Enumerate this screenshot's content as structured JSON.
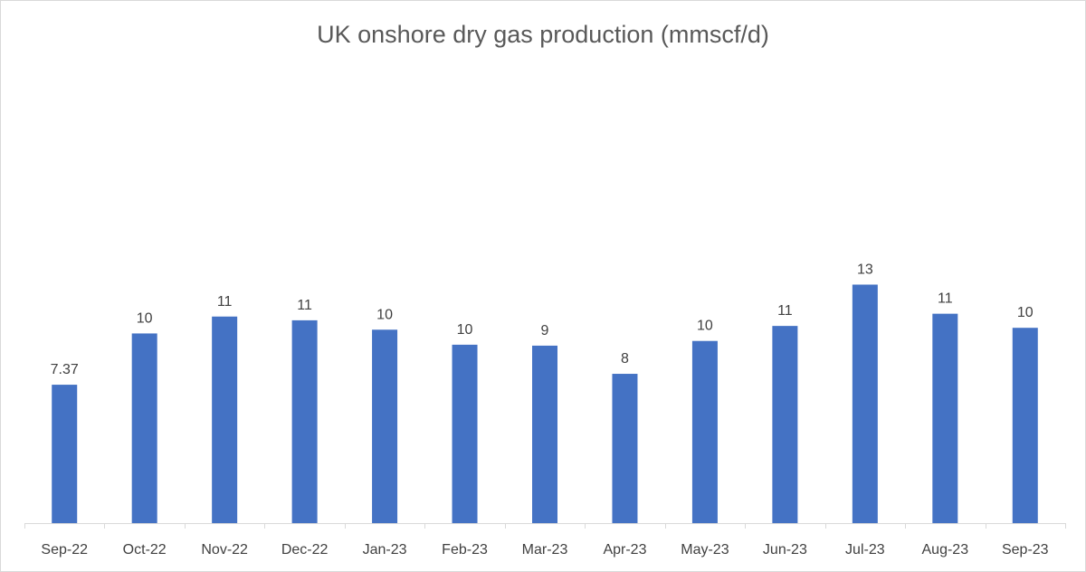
{
  "chart_data": {
    "type": "bar",
    "title": "UK onshore dry gas production (mmscf/d)",
    "xlabel": "",
    "ylabel": "",
    "categories": [
      "Sep-22",
      "Oct-22",
      "Nov-22",
      "Dec-22",
      "Jan-23",
      "Feb-23",
      "Mar-23",
      "Apr-23",
      "May-23",
      "Jun-23",
      "Jul-23",
      "Aug-23",
      "Sep-23"
    ],
    "values": [
      7.37,
      10.1,
      11.0,
      10.8,
      10.3,
      9.5,
      9.45,
      7.95,
      9.7,
      10.5,
      12.7,
      11.15,
      10.4
    ],
    "data_labels": [
      "7.37",
      "10",
      "11",
      "11",
      "10",
      "10",
      "9",
      "8",
      "10",
      "11",
      "13",
      "11",
      "10"
    ],
    "ylim": [
      0,
      14
    ],
    "grid": false,
    "legend": "none",
    "bar_color": "#4472c4"
  }
}
